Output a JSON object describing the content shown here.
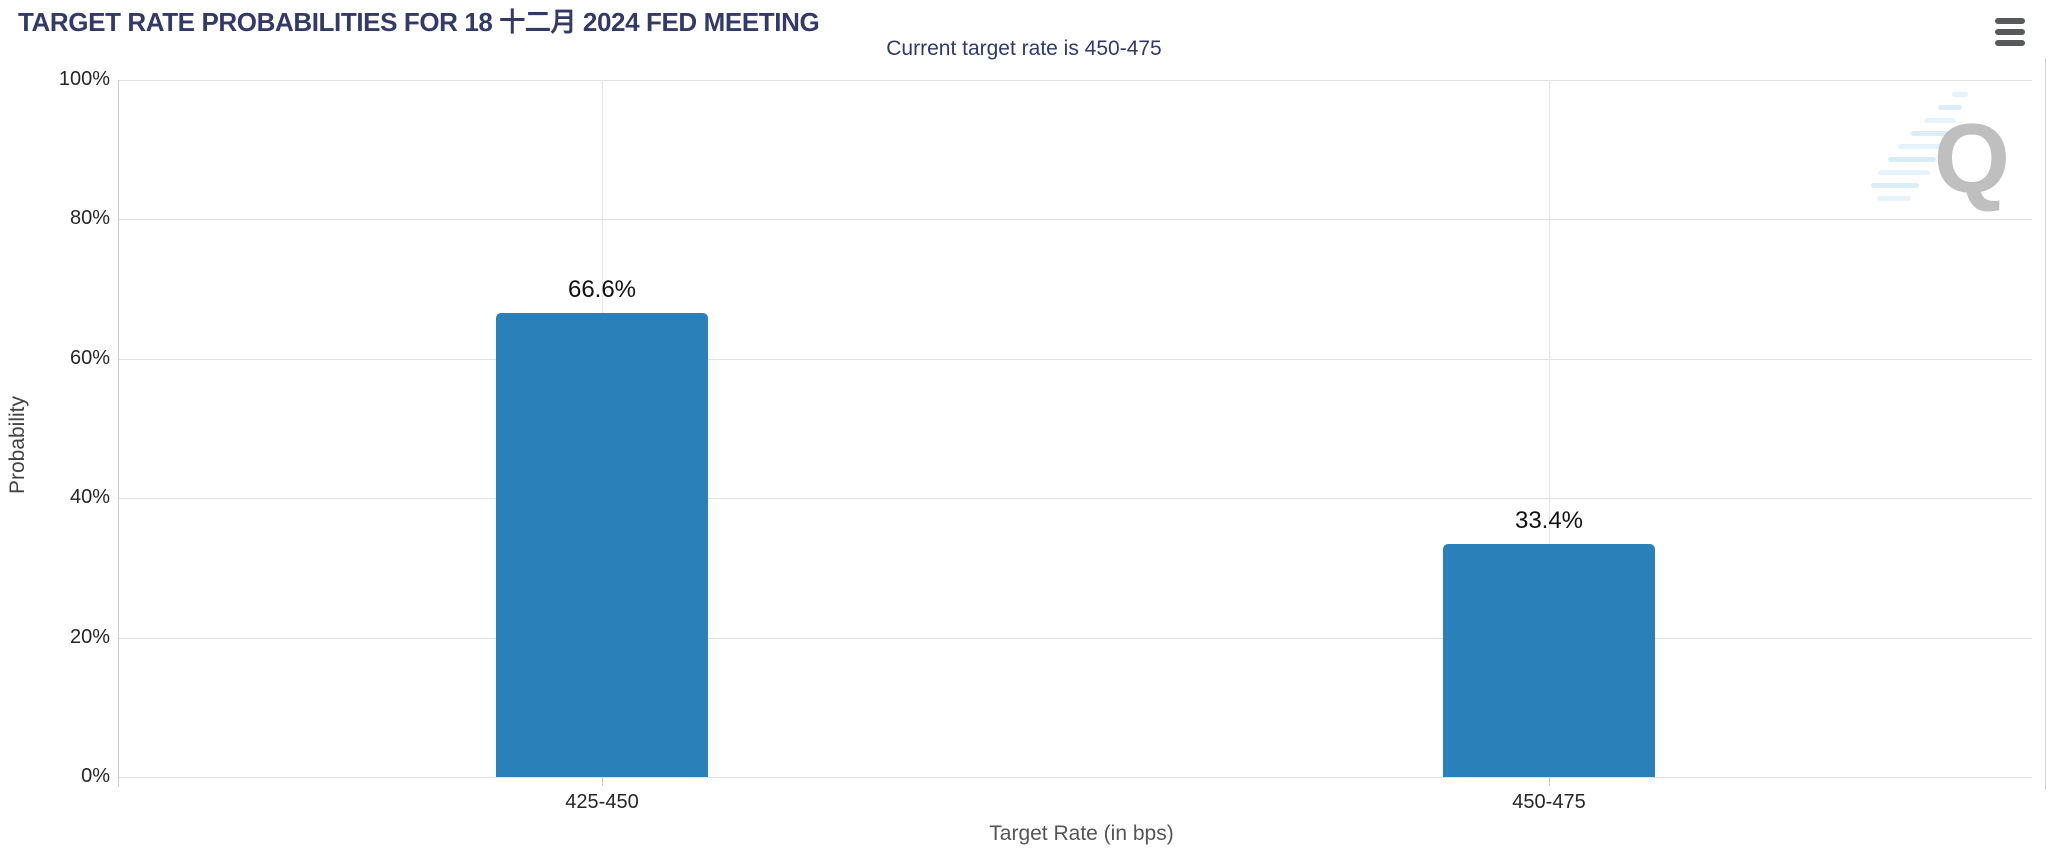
{
  "chart_data": {
    "type": "bar",
    "title": "TARGET RATE PROBABILITIES FOR 18 十二月 2024 FED MEETING",
    "subtitle": "Current target rate is 450-475",
    "categories": [
      "425-450",
      "450-475"
    ],
    "values": [
      66.6,
      33.4
    ],
    "value_labels": [
      "66.6%",
      "33.4%"
    ],
    "xlabel": "Target Rate (in bps)",
    "ylabel": "Probability",
    "ylim": [
      0,
      100
    ],
    "yticks": [
      "0%",
      "20%",
      "40%",
      "60%",
      "80%",
      "100%"
    ],
    "grid": true,
    "legend": "none",
    "bar_color": "#2A80B8",
    "watermark_letter": "Q"
  },
  "icons": {
    "menu": "hamburger-icon",
    "watermark": "quikstrike-q-logo"
  },
  "colors": {
    "title_navy": "#333A66",
    "bar_blue": "#2A80B8",
    "gridline": "#E0E0E0",
    "axis_line": "#CCCCCC",
    "tick_text": "#262626",
    "value_label": "#111111",
    "hamburger": "#58595B",
    "watermark_gray": "#B5B5B5",
    "watermark_blue": "#C9E3F2"
  }
}
